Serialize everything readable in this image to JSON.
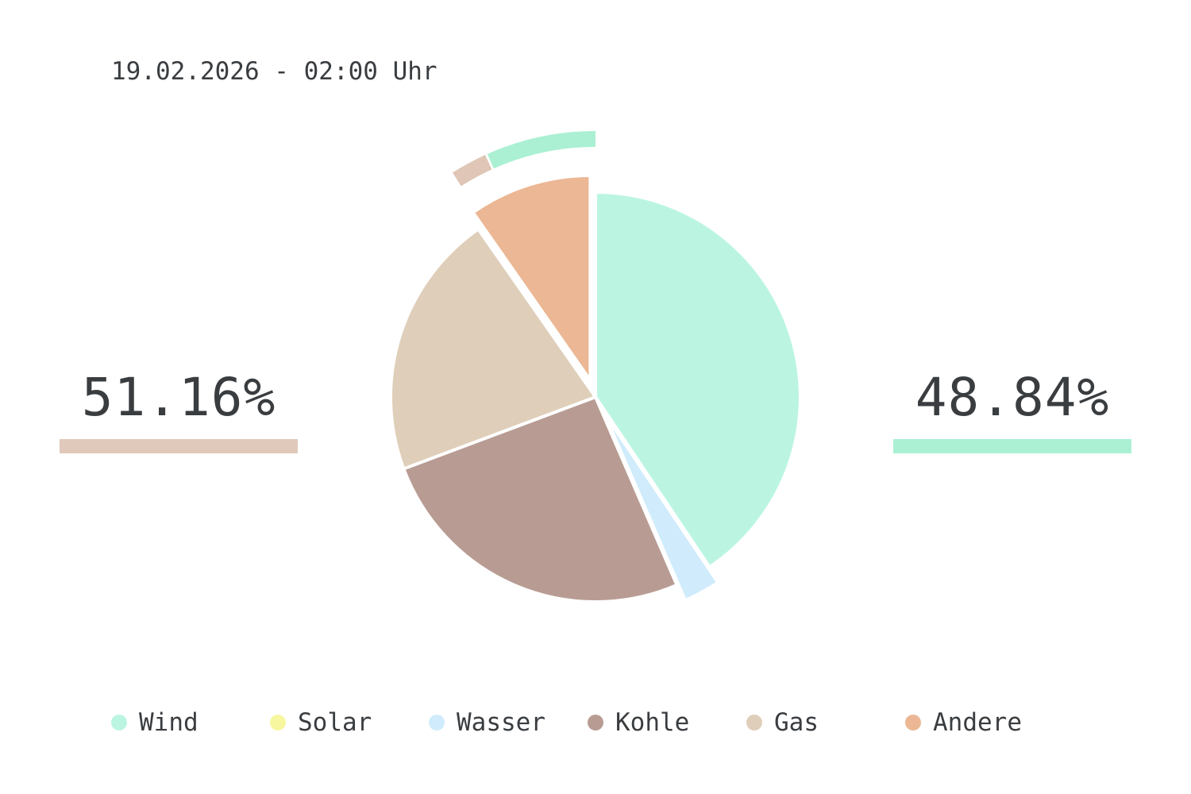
{
  "header": {
    "timestamp": "19.02.2026 - 02:00 Uhr"
  },
  "summary": {
    "left": {
      "value": "51.16%",
      "color": "#e0c9bb"
    },
    "right": {
      "value": "48.84%",
      "color": "#abf0d3"
    }
  },
  "chart_data": {
    "type": "pie",
    "categories": [
      "Wind",
      "Solar",
      "Wasser",
      "Kohle",
      "Gas",
      "Andere"
    ],
    "values": [
      40.6,
      0.0,
      2.9,
      25.8,
      21.0,
      9.7
    ],
    "colors": [
      "#bbf5e2",
      "#f7f7a0",
      "#d0ecfc",
      "#b89c93",
      "#dfceb9",
      "#ebb794"
    ],
    "exploded": [
      "Wasser",
      "Andere"
    ],
    "outer_ring": {
      "left_color": "#dfc6b6",
      "right_color": "#abf0d3"
    },
    "legend": "bottom"
  }
}
